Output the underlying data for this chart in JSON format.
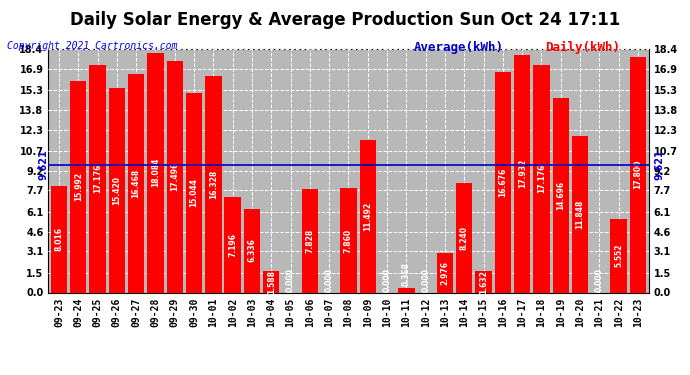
{
  "title": "Daily Solar Energy & Average Production Sun Oct 24 17:11",
  "copyright": "Copyright 2021 Cartronics.com",
  "categories": [
    "09-23",
    "09-24",
    "09-25",
    "09-26",
    "09-27",
    "09-28",
    "09-29",
    "09-30",
    "10-01",
    "10-02",
    "10-03",
    "10-04",
    "10-05",
    "10-06",
    "10-07",
    "10-08",
    "10-09",
    "10-10",
    "10-11",
    "10-12",
    "10-13",
    "10-14",
    "10-15",
    "10-16",
    "10-17",
    "10-18",
    "10-19",
    "10-20",
    "10-21",
    "10-22",
    "10-23"
  ],
  "values": [
    8.016,
    15.992,
    17.176,
    15.42,
    16.468,
    18.084,
    17.496,
    15.044,
    16.328,
    7.196,
    6.336,
    1.588,
    0.0,
    7.828,
    0.0,
    7.86,
    11.492,
    0.0,
    0.368,
    0.0,
    2.976,
    8.24,
    1.632,
    16.676,
    17.932,
    17.176,
    14.696,
    11.848,
    0.0,
    5.552,
    17.8
  ],
  "average": 9.621,
  "bar_color": "#ff0000",
  "average_color": "#0000cc",
  "background_color": "#ffffff",
  "plot_bg_color": "#b8b8b8",
  "title_color": "#000000",
  "yticks": [
    0.0,
    1.5,
    3.1,
    4.6,
    6.1,
    7.7,
    9.2,
    10.7,
    12.3,
    13.8,
    15.3,
    16.9,
    18.4
  ],
  "average_label": "Average(kWh)",
  "daily_label": "Daily(kWh)",
  "bar_label_fontsize": 5.5,
  "title_fontsize": 12,
  "copyright_fontsize": 7,
  "legend_fontsize": 9,
  "tick_fontsize": 7,
  "avg_side_fontsize": 7
}
